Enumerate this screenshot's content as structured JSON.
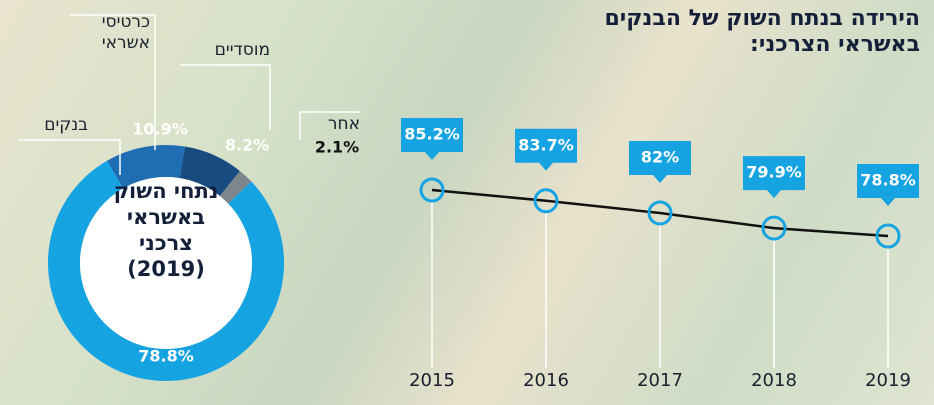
{
  "chart_data": [
    {
      "type": "donut",
      "title": "נתחי השוק באשראי צרכני (2019)",
      "categories": [
        "כרטיסי אשראי",
        "מוסדיים",
        "אחר",
        "בנקים"
      ],
      "values": [
        10.9,
        8.2,
        2.1,
        78.8
      ],
      "value_labels": [
        "10.9%",
        "8.2%",
        "2.1%",
        "78.8%"
      ],
      "colors": [
        "#1f6db3",
        "#184b80",
        "#7d868c",
        "#16a3e2"
      ]
    },
    {
      "type": "line",
      "title": "הירידה בנתח השוק של הבנקים באשראי הצרכני:",
      "x": [
        2015,
        2016,
        2017,
        2018,
        2019
      ],
      "values": [
        85.2,
        83.7,
        82,
        79.9,
        78.8
      ],
      "value_labels": [
        "85.2%",
        "83.7%",
        "82%",
        "79.9%",
        "78.8%"
      ],
      "color": "#111111",
      "marker_color": "#16a3e2"
    }
  ]
}
